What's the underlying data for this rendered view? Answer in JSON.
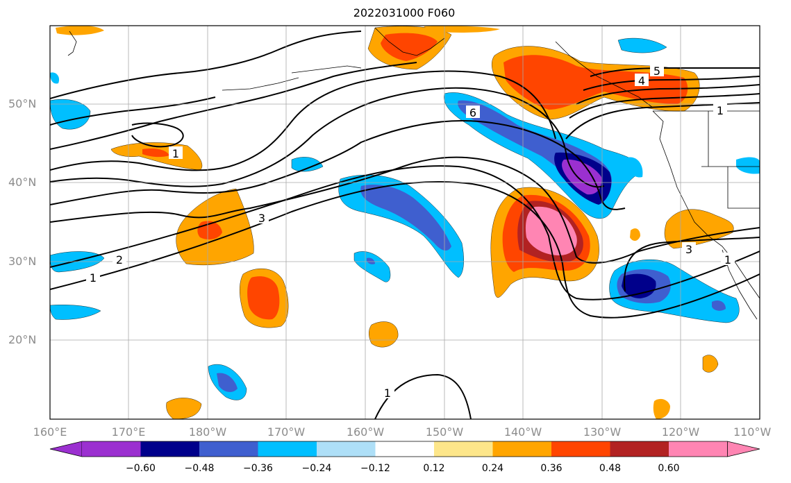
{
  "title": "2022031000 F060",
  "lat_labels": [
    "50°N",
    "40°N",
    "30°N",
    "20°N"
  ],
  "lon_labels": [
    "160°E",
    "170°E",
    "180°W",
    "170°W",
    "160°W",
    "150°W",
    "140°W",
    "130°W",
    "120°W",
    "110°W"
  ],
  "contour_labels": [
    "1",
    "2",
    "3",
    "1",
    "6",
    "5",
    "4",
    "1",
    "3",
    "1",
    "1"
  ],
  "colorbar": {
    "tick_labels": [
      "−0.60",
      "−0.48",
      "−0.36",
      "−0.24",
      "−0.12",
      "0.12",
      "0.24",
      "0.36",
      "0.48",
      "0.60"
    ],
    "colors": [
      "#9b30d0",
      "#00008b",
      "#3f5fcf",
      "#00bfff",
      "#aedff7",
      "#ffffff",
      "#fde68a",
      "#ffa500",
      "#ff4500",
      "#b22222",
      "#ff85b3"
    ]
  }
}
